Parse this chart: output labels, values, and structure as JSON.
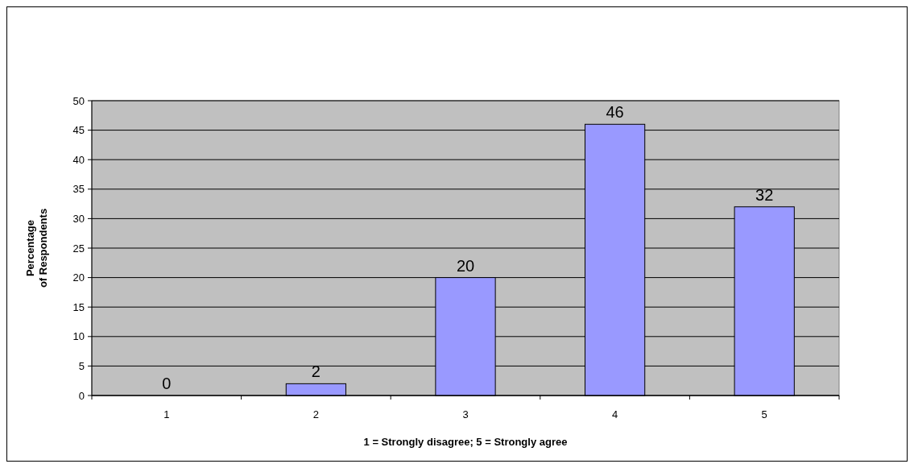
{
  "chart_data": {
    "type": "bar",
    "xlabel": "1 = Strongly disagree; 5 = Strongly agree",
    "ylabel": "Percentage\nof Respondents",
    "categories": [
      "1",
      "2",
      "3",
      "4",
      "5"
    ],
    "values": [
      0,
      2,
      20,
      46,
      32
    ],
    "color": "#9999ff",
    "ylim": [
      0,
      50
    ],
    "yticks": [
      0,
      5,
      10,
      15,
      20,
      25,
      30,
      35,
      40,
      45,
      50
    ],
    "grid": "y",
    "data_labels": true
  }
}
